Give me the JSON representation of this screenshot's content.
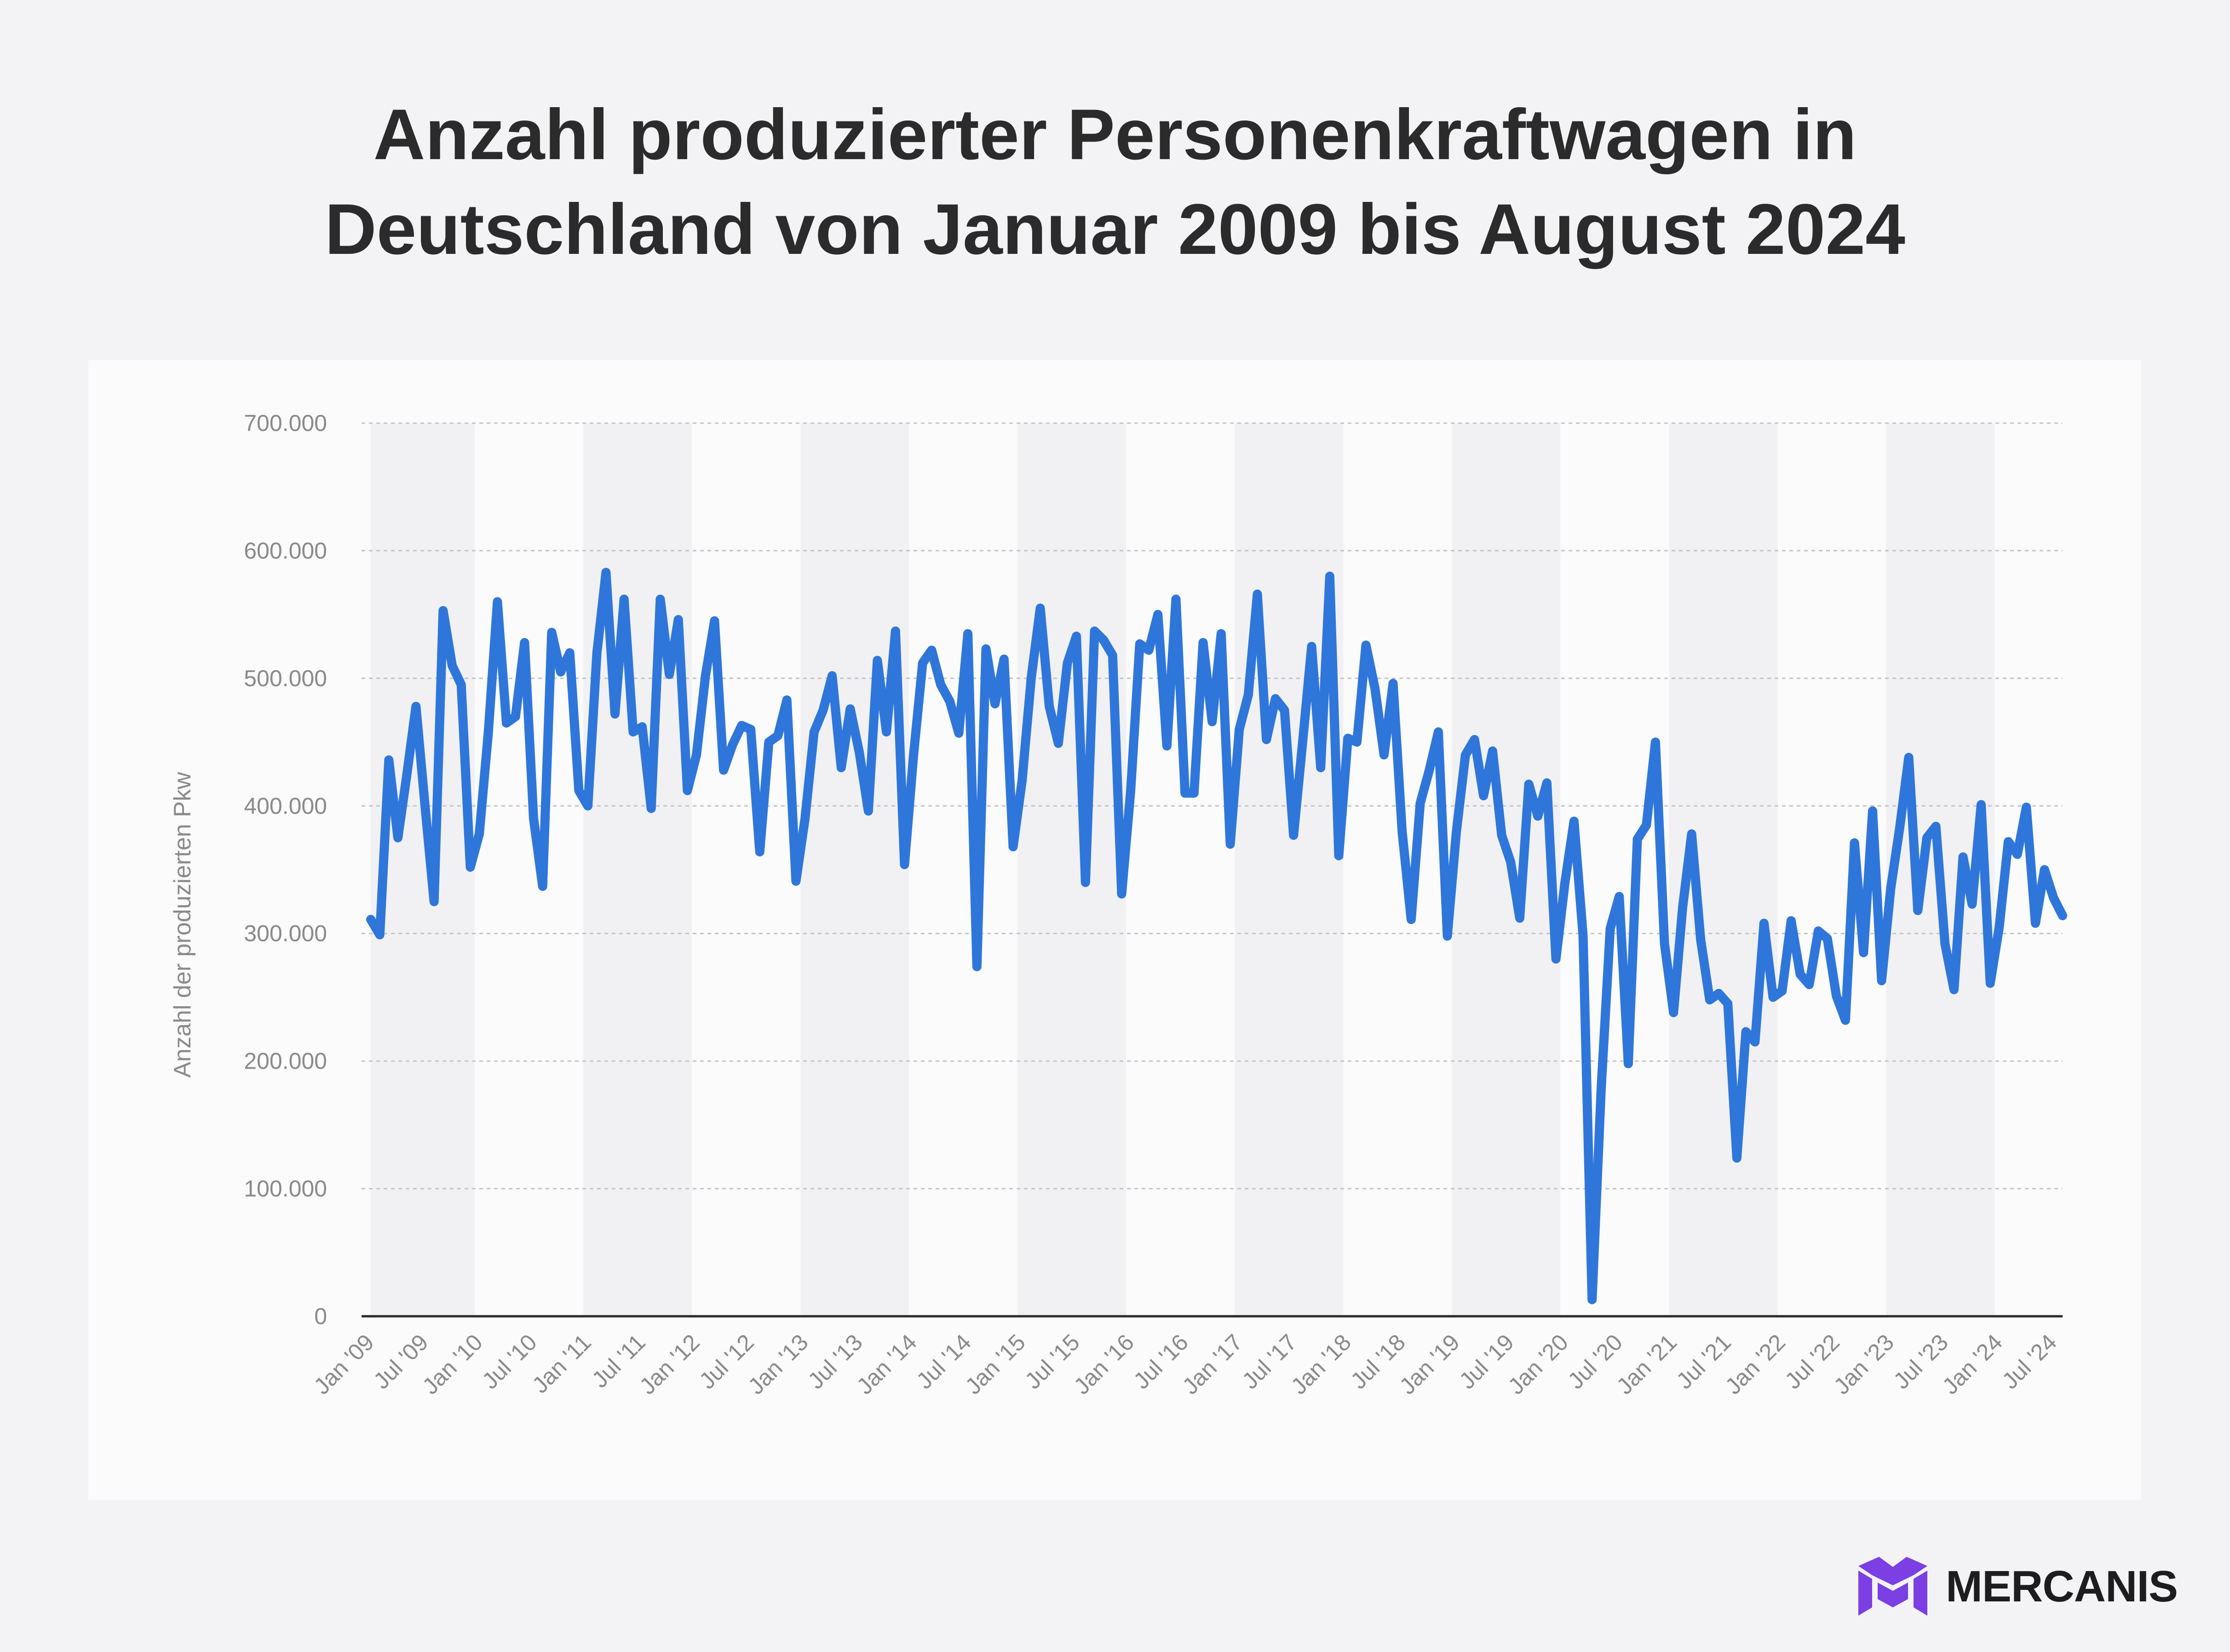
{
  "title_lines": [
    "Anzahl produzierter Personenkraftwagen in",
    "Deutschland von Januar 2009 bis August 2024"
  ],
  "brand": {
    "name": "MERCANIS",
    "icon": "mercanis-logo-icon"
  },
  "colors": {
    "line": "#2f76db",
    "brand_purple": "#7b3fe4",
    "band": "#f1f1f3"
  },
  "chart_data": {
    "type": "line",
    "title": "Anzahl produzierter Personenkraftwagen in Deutschland von Januar 2009 bis August 2024",
    "ylabel": "Anzahl der produzierten Pkw",
    "xlabel": "",
    "ylim": [
      0,
      700000
    ],
    "y_ticks": [
      0,
      100000,
      200000,
      300000,
      400000,
      500000,
      600000,
      700000
    ],
    "y_tick_labels": [
      "0",
      "100.000",
      "200.000",
      "300.000",
      "400.000",
      "500.000",
      "600.000",
      "700.000"
    ],
    "x_tick_labels": [
      "Jan '09",
      "Jul '09",
      "Jan '10",
      "Jul '10",
      "Jan '11",
      "Jul '11",
      "Jan '12",
      "Jul '12",
      "Jan '13",
      "Jul '13",
      "Jan '14",
      "Jul '14",
      "Jan '15",
      "Jul '15",
      "Jan '16",
      "Jul '16",
      "Jan '17",
      "Jul '17",
      "Jan '18",
      "Jul '18",
      "Jan '19",
      "Jul '19",
      "Jan '20",
      "Jul '20",
      "Jan '21",
      "Jul '21",
      "Jan '22",
      "Jul '22",
      "Jan '23",
      "Jul '23",
      "Jan '24",
      "Jul '24"
    ],
    "grid": true,
    "legend": "none",
    "x_start": "2009-01",
    "x_end": "2024-08",
    "series": [
      {
        "values": [
          311000,
          299000,
          436000,
          375000,
          425000,
          478000,
          400000,
          325000,
          553000,
          510000,
          495000,
          352000,
          378000,
          458000,
          560000,
          465000,
          470000,
          528000,
          390000,
          337000,
          536000,
          505000,
          520000,
          412000,
          400000,
          520000,
          583000,
          472000,
          562000,
          458000,
          462000,
          398000,
          562000,
          503000,
          546000,
          412000,
          440000,
          502000,
          545000,
          428000,
          448000,
          463000,
          460000,
          364000,
          450000,
          455000,
          483000,
          341000,
          390000,
          458000,
          475000,
          502000,
          430000,
          476000,
          442000,
          396000,
          514000,
          458000,
          537000,
          354000,
          440000,
          512000,
          522000,
          495000,
          482000,
          457000,
          535000,
          274000,
          523000,
          480000,
          515000,
          368000,
          420000,
          500000,
          555000,
          478000,
          449000,
          512000,
          533000,
          340000,
          537000,
          530000,
          518000,
          331000,
          412000,
          527000,
          522000,
          550000,
          447000,
          562000,
          410000,
          410000,
          528000,
          466000,
          535000,
          370000,
          460000,
          487000,
          566000,
          452000,
          484000,
          475000,
          377000,
          450000,
          525000,
          430000,
          580000,
          361000,
          453000,
          450000,
          526000,
          492000,
          440000,
          496000,
          380000,
          311000,
          402000,
          428000,
          458000,
          298000,
          380000,
          440000,
          452000,
          408000,
          443000,
          377000,
          356000,
          312000,
          417000,
          392000,
          418000,
          280000,
          340000,
          388000,
          298000,
          13000,
          178000,
          304000,
          329000,
          198000,
          374000,
          385000,
          450000,
          292000,
          238000,
          320000,
          378000,
          295000,
          248000,
          253000,
          245000,
          124000,
          223000,
          215000,
          308000,
          250000,
          255000,
          310000,
          268000,
          260000,
          302000,
          296000,
          251000,
          232000,
          371000,
          285000,
          396000,
          263000,
          335000,
          383000,
          438000,
          318000,
          375000,
          384000,
          292000,
          256000,
          360000,
          323000,
          401000,
          261000,
          305000,
          372000,
          362000,
          399000,
          308000,
          350000,
          328000,
          314000
        ]
      }
    ]
  }
}
